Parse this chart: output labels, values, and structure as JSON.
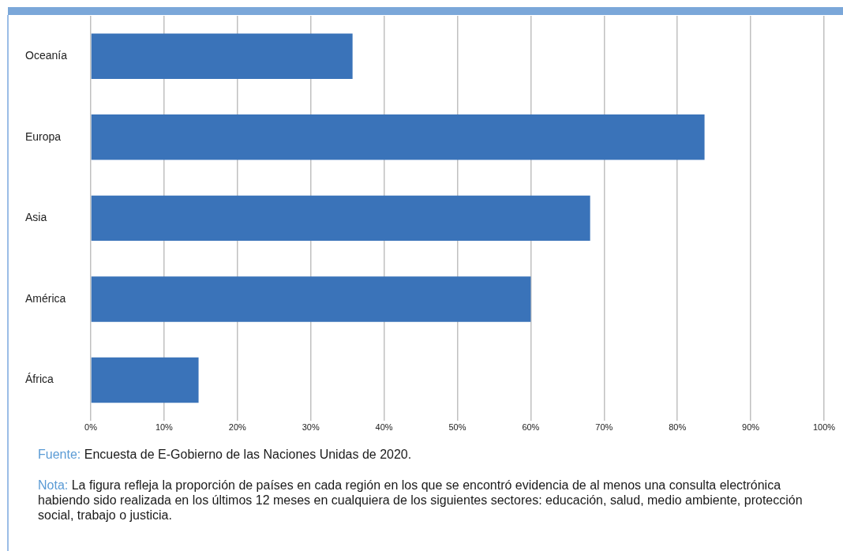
{
  "chart_data": {
    "type": "bar",
    "orientation": "horizontal",
    "categories": [
      "Oceanía",
      "Europa",
      "Asia",
      "América",
      "África"
    ],
    "values": [
      35.7,
      83.7,
      68.1,
      60.0,
      14.7
    ],
    "color": "#3a73b9",
    "xlim": [
      0,
      100
    ],
    "xticks": [
      {
        "value": 0,
        "label": "0%"
      },
      {
        "value": 10,
        "label": "10%"
      },
      {
        "value": 20,
        "label": "20%"
      },
      {
        "value": 30,
        "label": "30%"
      },
      {
        "value": 40,
        "label": "40%"
      },
      {
        "value": 50,
        "label": "50%"
      },
      {
        "value": 60,
        "label": "60%"
      },
      {
        "value": 70,
        "label": "70%"
      },
      {
        "value": 80,
        "label": "80%"
      },
      {
        "value": 90,
        "label": "90%"
      },
      {
        "value": 100,
        "label": "100%"
      }
    ],
    "grid": "x",
    "legend": false,
    "annotations": [
      "Fuente: Encuesta de E-Gobierno de las Naciones Unidas de 2020.",
      "Nota: La figura refleja la proporción de países en cada región en los que se encontró evidencia de al menos una consulta electrónica habiendo sido realizada en los últimos 12 meses en cualquiera de los siguientes sectores: educación, salud, medio ambiente, protección social, trabajo o justicia."
    ]
  }
}
